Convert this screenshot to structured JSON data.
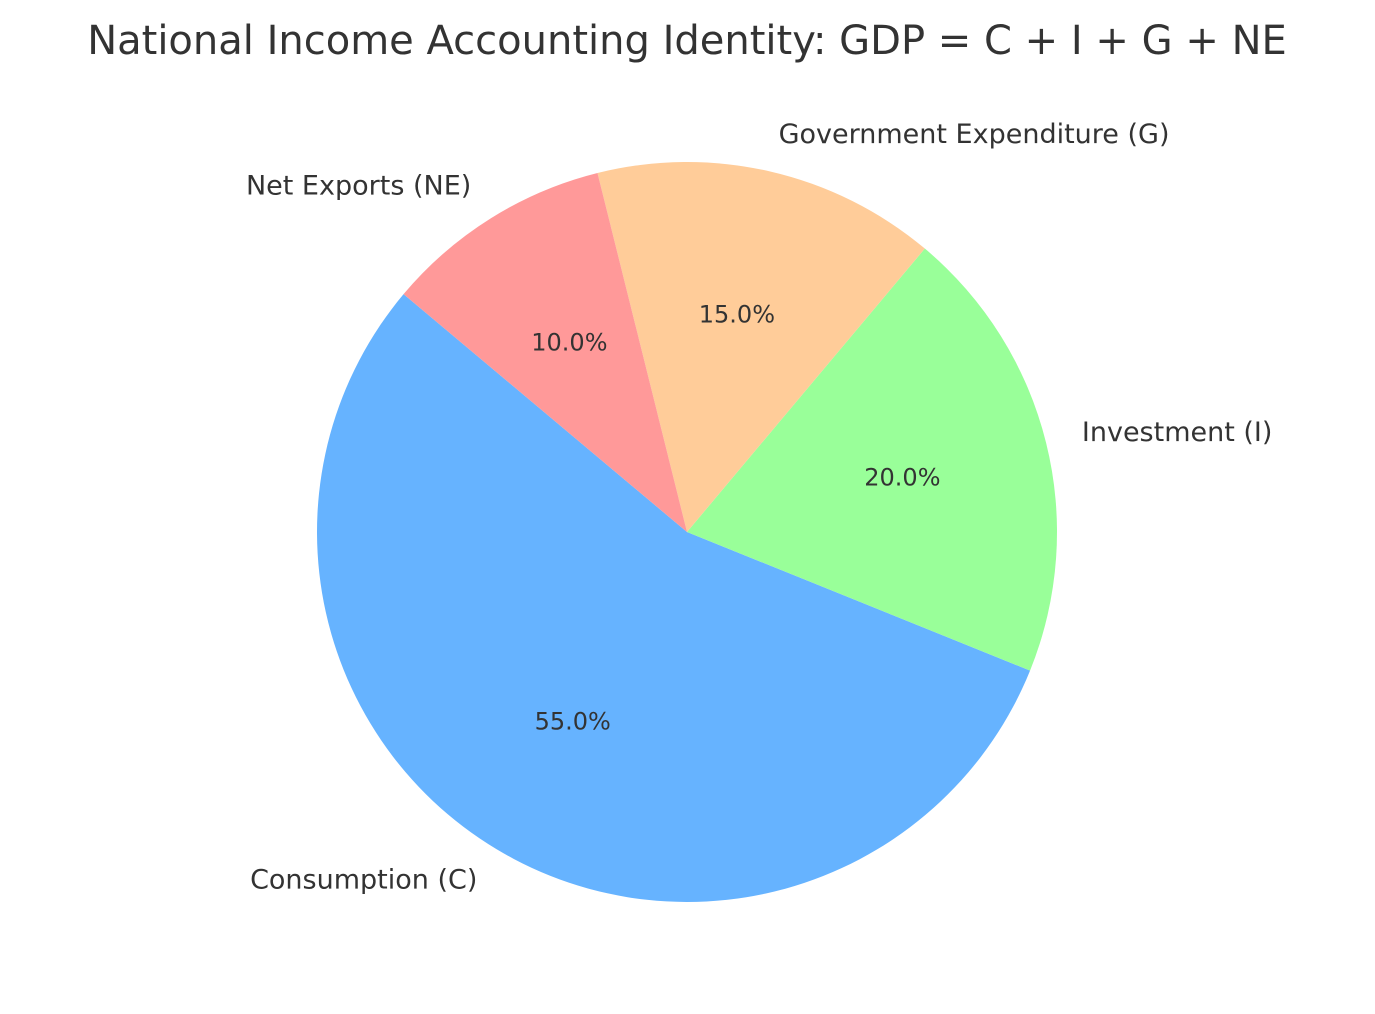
{
  "chart_data": {
    "type": "pie",
    "title": "National Income Accounting Identity: GDP = C + I + G + NE",
    "slices": [
      {
        "label": "Consumption (C)",
        "value": 55,
        "pct_label": "55.0%",
        "color": "#66b3ff"
      },
      {
        "label": "Investment (I)",
        "value": 20,
        "pct_label": "20.0%",
        "color": "#99ff99"
      },
      {
        "label": "Government Expenditure (G)",
        "value": 15,
        "pct_label": "15.0%",
        "color": "#ffcc99"
      },
      {
        "label": "Net Exports (NE)",
        "value": 10,
        "pct_label": "10.0%",
        "color": "#ff9999"
      }
    ],
    "start_angle_deg": 140,
    "direction": "counterclockwise",
    "legend": "none"
  }
}
